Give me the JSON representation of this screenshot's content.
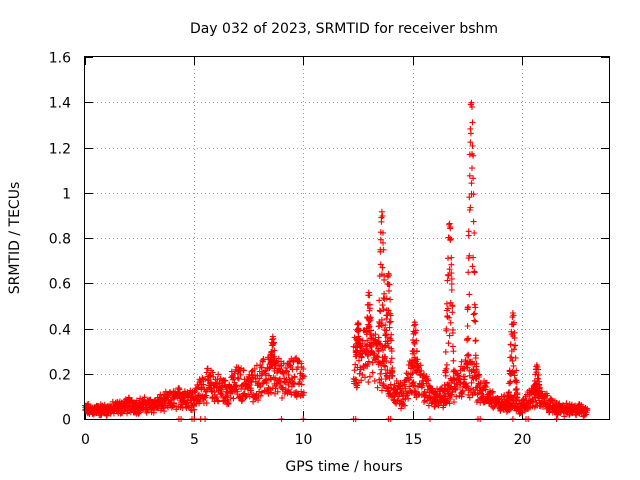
{
  "chart_data": {
    "type": "scatter",
    "title": "Day 032 of 2023, SRMTID for receiver bshm",
    "xlabel": "GPS time / hours",
    "ylabel": "SRMTID / TECUs",
    "xlim": [
      0,
      24
    ],
    "ylim": [
      0,
      1.6
    ],
    "x_ticks": [
      0,
      5,
      10,
      15,
      20
    ],
    "x_tick_labels": [
      "0",
      "5",
      "10",
      "15",
      "20"
    ],
    "y_ticks": [
      0,
      0.2,
      0.4,
      0.6,
      0.8,
      1.0,
      1.2,
      1.4,
      1.6
    ],
    "y_tick_labels": [
      "0",
      "0.2",
      "0.4",
      "0.6",
      "0.8",
      "1",
      "1.2",
      "1.4",
      "1.6"
    ],
    "grid": true,
    "marker": "+",
    "marker_color": "#ff0000",
    "x_data_range_hours": [
      0,
      23
    ],
    "baseline_profile": [
      [
        0.0,
        0.04
      ],
      [
        1.0,
        0.04
      ],
      [
        2.0,
        0.06
      ],
      [
        3.0,
        0.06
      ],
      [
        4.0,
        0.08
      ],
      [
        4.5,
        0.1
      ],
      [
        5.0,
        0.09
      ],
      [
        5.5,
        0.15
      ],
      [
        6.0,
        0.14
      ],
      [
        6.5,
        0.12
      ],
      [
        7.0,
        0.16
      ],
      [
        7.5,
        0.14
      ],
      [
        8.0,
        0.17
      ],
      [
        8.5,
        0.2
      ],
      [
        9.0,
        0.18
      ],
      [
        9.5,
        0.2
      ],
      [
        10.0,
        0.16
      ],
      [
        12.4,
        0.25
      ],
      [
        13.0,
        0.3
      ],
      [
        13.5,
        0.25
      ],
      [
        14.0,
        0.15
      ],
      [
        14.5,
        0.1
      ],
      [
        15.0,
        0.2
      ],
      [
        15.5,
        0.15
      ],
      [
        16.0,
        0.08
      ],
      [
        16.5,
        0.1
      ],
      [
        17.0,
        0.15
      ],
      [
        17.5,
        0.2
      ],
      [
        18.0,
        0.15
      ],
      [
        18.5,
        0.1
      ],
      [
        19.0,
        0.06
      ],
      [
        19.5,
        0.08
      ],
      [
        20.0,
        0.05
      ],
      [
        20.5,
        0.1
      ],
      [
        21.0,
        0.08
      ],
      [
        21.5,
        0.05
      ],
      [
        22.0,
        0.04
      ],
      [
        23.0,
        0.04
      ]
    ],
    "peaks": [
      {
        "x": 8.6,
        "y": 0.37
      },
      {
        "x": 12.5,
        "y": 0.43
      },
      {
        "x": 13.0,
        "y": 0.56
      },
      {
        "x": 13.6,
        "y": 0.92
      },
      {
        "x": 13.9,
        "y": 0.66
      },
      {
        "x": 15.1,
        "y": 0.43
      },
      {
        "x": 16.7,
        "y": 0.88
      },
      {
        "x": 17.7,
        "y": 1.43
      },
      {
        "x": 19.6,
        "y": 0.47
      },
      {
        "x": 20.7,
        "y": 0.24
      }
    ],
    "zero_points_x": [
      4.3,
      4.4,
      4.9,
      5.0,
      5.3,
      5.5,
      9.0,
      10.0,
      12.3,
      12.4,
      13.9,
      14.0,
      15.8,
      18.0,
      18.1,
      19.6,
      20.2,
      20.3,
      21.6
    ]
  }
}
